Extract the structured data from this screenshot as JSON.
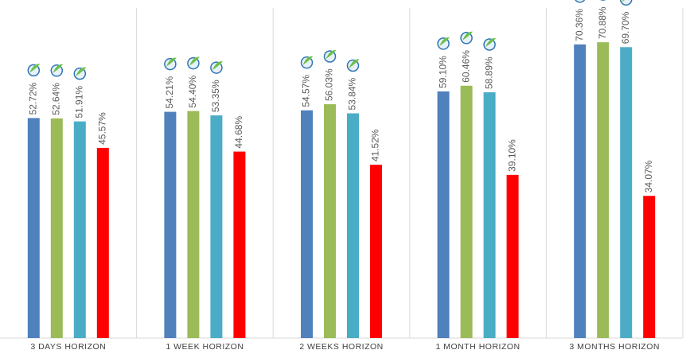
{
  "chart_data": {
    "type": "bar",
    "categories": [
      "3 DAYS HORIZON",
      "1 WEEK HORIZON",
      "2 WEEKS HORIZON",
      "1 MONTH HORIZON",
      "3 MONTHS HORIZON"
    ],
    "series": [
      {
        "color": "#4f81bd",
        "values": [
          52.72,
          54.21,
          54.57,
          59.1,
          70.36
        ],
        "value_labels": [
          "52.72%",
          "54.21%",
          "54.57%",
          "59.10%",
          "70.36%"
        ]
      },
      {
        "color": "#9bbb59",
        "values": [
          52.64,
          54.4,
          56.03,
          60.46,
          70.88
        ],
        "value_labels": [
          "52.64%",
          "54.40%",
          "56.03%",
          "60.46%",
          "70.88%"
        ]
      },
      {
        "color": "#4bacc6",
        "values": [
          51.91,
          53.35,
          53.84,
          58.89,
          69.7
        ],
        "value_labels": [
          "51.91%",
          "53.35%",
          "53.84%",
          "58.89%",
          "69.70%"
        ]
      },
      {
        "color": "#ff0000",
        "values": [
          45.57,
          44.68,
          41.52,
          39.1,
          34.07
        ],
        "value_labels": [
          "45.57%",
          "44.68%",
          "41.52%",
          "39.10%",
          "34.07%"
        ]
      }
    ],
    "ylim": [
      0,
      81
    ]
  }
}
